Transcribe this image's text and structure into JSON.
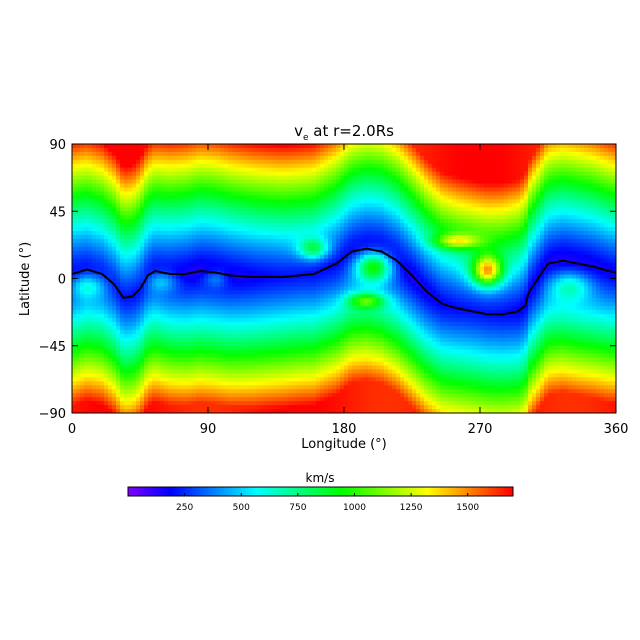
{
  "chart_data": {
    "type": "heatmap",
    "title_main": "v",
    "title_sub": "e",
    "title_rest": " at r=2.0Rs",
    "xlabel": "Longitude (°)",
    "ylabel": "Latitude (°)",
    "xlim": [
      0,
      360
    ],
    "ylim": [
      -90,
      90
    ],
    "xticks": [
      0,
      90,
      180,
      270,
      360
    ],
    "yticks": [
      90,
      45,
      0,
      -45,
      -90
    ],
    "xtick_labels": [
      "0",
      "90",
      "180",
      "270",
      "360"
    ],
    "ytick_labels": [
      "90",
      "45",
      "0",
      "−45",
      "−90"
    ],
    "colorbar": {
      "label": "km/s",
      "range": [
        0,
        1700
      ],
      "ticks": [
        250,
        500,
        750,
        1000,
        1250,
        1500
      ],
      "tick_labels": [
        "250",
        "500",
        "750",
        "1000",
        "1250",
        "1500"
      ],
      "colors": [
        "#7f00ff",
        "#0000ff",
        "#0080ff",
        "#00ffff",
        "#00ff80",
        "#00ff00",
        "#80ff00",
        "#ffff00",
        "#ff8000",
        "#ff0000"
      ]
    },
    "neutral_line": {
      "x": [
        0,
        10,
        20,
        28,
        34,
        40,
        45,
        48,
        50,
        55,
        65,
        75,
        85,
        95,
        105,
        120,
        140,
        160,
        175,
        185,
        195,
        205,
        215,
        225,
        235,
        245,
        255,
        265,
        275,
        285,
        295,
        300,
        302,
        305,
        315,
        325,
        335,
        345,
        355,
        360
      ],
      "y": [
        3,
        6,
        3,
        -4,
        -13,
        -12,
        -7,
        -2,
        2,
        5,
        3,
        3,
        5,
        4,
        2,
        1,
        1,
        3,
        10,
        18,
        20,
        18,
        12,
        2,
        -9,
        -17,
        -20,
        -22,
        -24,
        -24,
        -22,
        -18,
        -10,
        -5,
        10,
        12,
        10,
        8,
        5,
        4
      ]
    }
  }
}
